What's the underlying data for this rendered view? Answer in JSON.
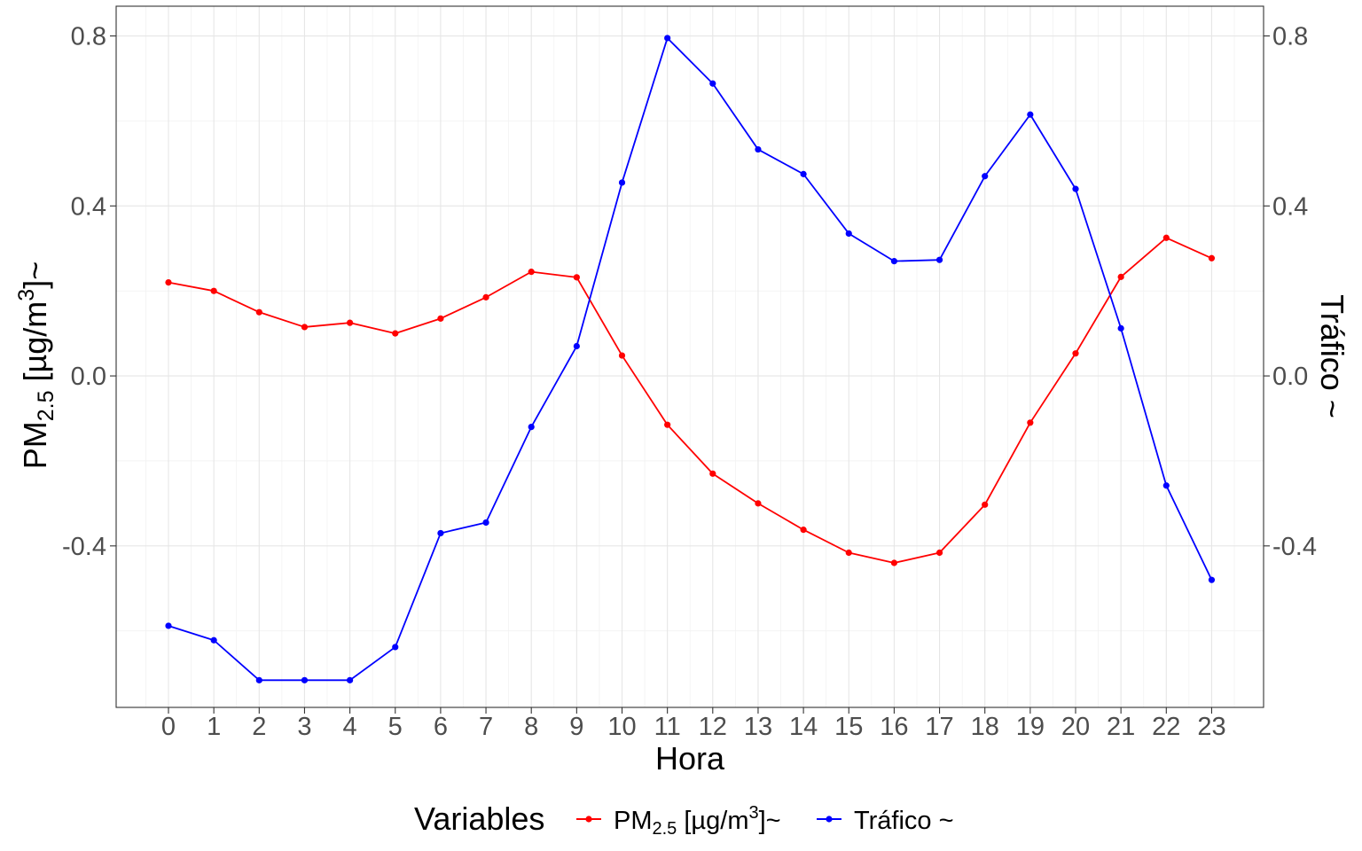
{
  "chart_data": {
    "type": "line",
    "x_title": "Hora",
    "y_left_title": {
      "base": "PM",
      "sub": "2.5",
      "unit_open": " [µg/m",
      "sup": "3",
      "unit_close": "]~"
    },
    "y_right_title": "Tráfico ~",
    "x": [
      0,
      1,
      2,
      3,
      4,
      5,
      6,
      7,
      8,
      9,
      10,
      11,
      12,
      13,
      14,
      15,
      16,
      17,
      18,
      19,
      20,
      21,
      22,
      23
    ],
    "y_left_ticks": [
      "0.8",
      "0.4",
      "0.0",
      "-0.4"
    ],
    "y_right_ticks": [
      "0.8",
      "0.4",
      "0.0",
      "-0.4"
    ],
    "ylim": [
      -0.78,
      0.87
    ],
    "grid": true,
    "legend": {
      "position": "bottom",
      "title": "Variables",
      "entries": [
        {
          "base": "PM",
          "sub": "2.5",
          "unit_open": " [µg/m",
          "sup": "3",
          "unit_close": "]~",
          "color": "#ff0000"
        },
        {
          "label": "Tráfico ~",
          "color": "#0000ff"
        }
      ]
    },
    "series": [
      {
        "key": "pm25",
        "color": "#ff0000",
        "values": [
          0.22,
          0.2,
          0.15,
          0.115,
          0.125,
          0.1,
          0.135,
          0.185,
          0.245,
          0.232,
          0.048,
          -0.115,
          -0.23,
          -0.3,
          -0.362,
          -0.416,
          -0.44,
          -0.416,
          -0.303,
          -0.11,
          0.053,
          0.233,
          0.325,
          0.277
        ]
      },
      {
        "key": "trafico",
        "color": "#0000ff",
        "values": [
          -0.588,
          -0.622,
          -0.716,
          -0.716,
          -0.716,
          -0.638,
          -0.37,
          -0.345,
          -0.12,
          0.07,
          0.455,
          0.795,
          0.688,
          0.533,
          0.475,
          0.335,
          0.27,
          0.273,
          0.47,
          0.615,
          0.44,
          0.112,
          -0.258,
          -0.48
        ]
      }
    ]
  }
}
